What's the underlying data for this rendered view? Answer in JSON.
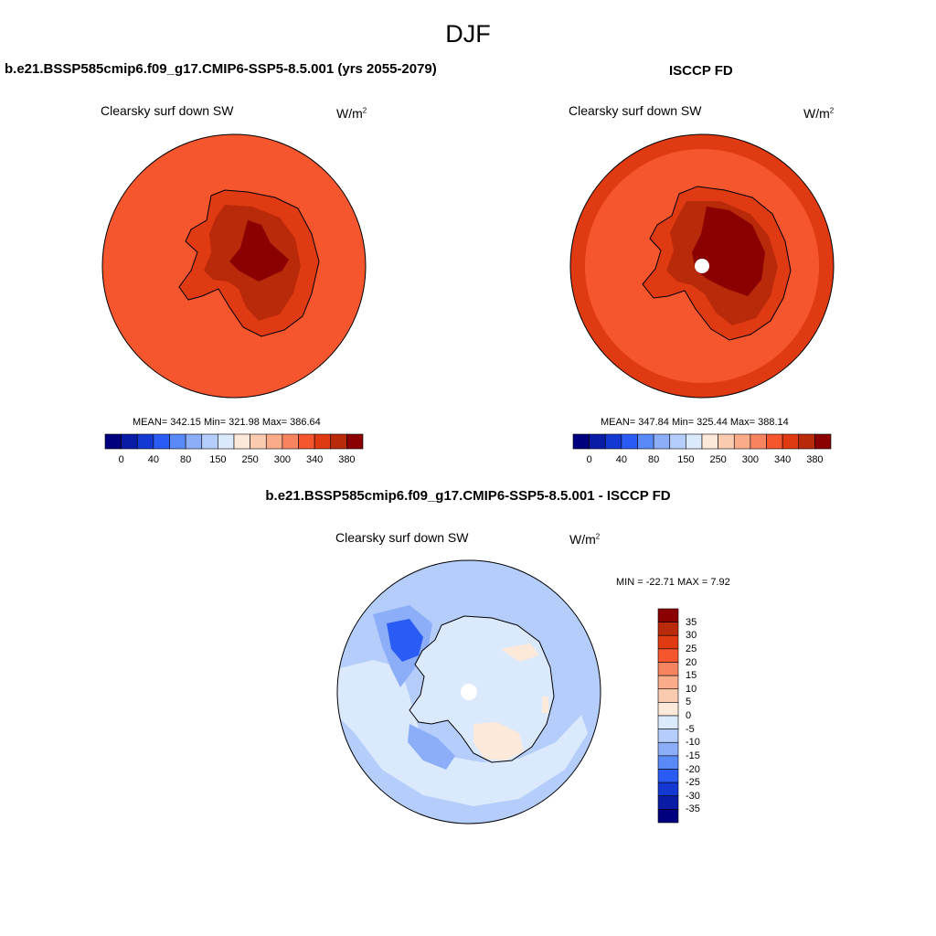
{
  "figure": {
    "season": "DJF"
  },
  "panels": {
    "model": {
      "title": "b.e21.BSSP585cmip6.f09_g17.CMIP6-SSP5-8.5.001 (yrs 2055-2079)",
      "variable": "Clearsky surf down SW",
      "units_base": "W/m",
      "units_exp": "2",
      "stats": "MEAN= 342.15  Min= 321.98  Max= 386.64"
    },
    "obs": {
      "title": "ISCCP FD",
      "variable": "Clearsky surf down SW",
      "units_base": "W/m",
      "units_exp": "2",
      "stats": "MEAN= 347.84  Min= 325.44  Max= 388.14"
    },
    "diff": {
      "title": "b.e21.BSSP585cmip6.f09_g17.CMIP6-SSP5-8.5.001 - ISCCP FD",
      "variable": "Clearsky surf down SW",
      "units_base": "W/m",
      "units_exp": "2",
      "stats": "MIN = -22.71 MAX =   7.92"
    }
  },
  "colorbars": {
    "abs": {
      "colors": [
        "#00007f",
        "#0a1ca5",
        "#1439d2",
        "#2a5cf5",
        "#5a8af7",
        "#8caef9",
        "#b4cdfb",
        "#dbe9fd",
        "#fde9da",
        "#fbcbb0",
        "#f9ab8a",
        "#f78460",
        "#f5562e",
        "#e03a12",
        "#b82a0a",
        "#8b0000"
      ],
      "tick_labels": [
        "0",
        "40",
        "80",
        "150",
        "250",
        "300",
        "340",
        "380"
      ]
    },
    "diff": {
      "colors": [
        "#8b0000",
        "#b82a0a",
        "#e03a12",
        "#f5562e",
        "#f78460",
        "#f9ab8a",
        "#fbcbb0",
        "#fde9da",
        "#dbe9fd",
        "#b4cdfb",
        "#8caef9",
        "#5a8af7",
        "#2a5cf5",
        "#1439d2",
        "#0a1ca5",
        "#00007f"
      ],
      "tick_labels": [
        "35",
        "30",
        "25",
        "20",
        "15",
        "10",
        "5",
        "0",
        "-5",
        "-10",
        "-15",
        "-20",
        "-25",
        "-30",
        "-35"
      ]
    }
  },
  "maps": {
    "model": {
      "ocean_color": "#f5562e",
      "coast_color": "#e03a12",
      "interior_color": "#b82a0a",
      "core_color": "#8b0000"
    },
    "obs": {
      "outer_ring_color": "#e03a12",
      "ocean_color": "#f5562e",
      "coast_color": "#e03a12",
      "interior_color": "#b82a0a",
      "core_color": "#8b0000",
      "pole_hole_color": "#ffffff"
    },
    "diff": {
      "ocean_color": "#b4cdfb",
      "near_zero_color": "#dbe9fd",
      "negative_color": "#8caef9",
      "strong_negative_color": "#2a5cf5",
      "positive_color": "#fde9da",
      "pole_hole_color": "#ffffff"
    }
  }
}
